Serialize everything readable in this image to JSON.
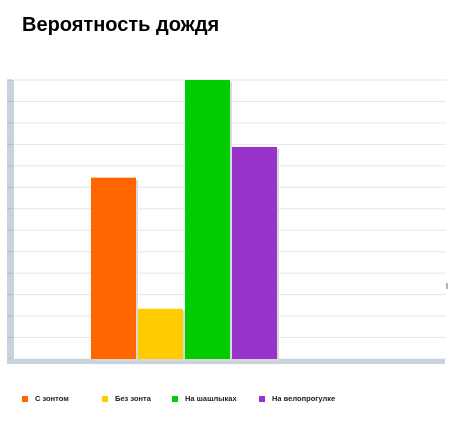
{
  "chart_data": {
    "type": "bar",
    "title": "Вероятность дождя",
    "categories": [
      "С зонтом",
      "Без зонта",
      "На шашлыках",
      "На велопрогулке"
    ],
    "values": [
      65,
      18,
      100,
      76
    ],
    "colors": [
      "#ff6600",
      "#ffcc00",
      "#00cc00",
      "#9933cc"
    ],
    "ylim": [
      0,
      100
    ],
    "xlabel": "",
    "ylabel": "",
    "grid": true,
    "legend_position": "bottom",
    "legend": [
      "С зонтом",
      "Без зонта",
      "На шашлыках",
      "На велопрогулке"
    ]
  }
}
